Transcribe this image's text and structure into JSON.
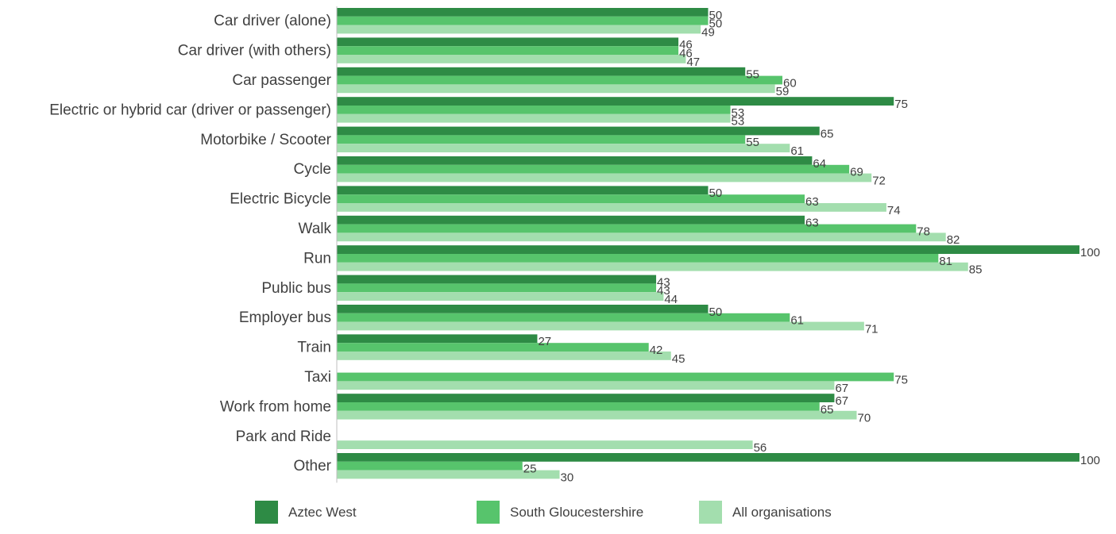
{
  "chart_data": {
    "type": "bar",
    "orientation": "horizontal",
    "categories": [
      "Car driver (alone)",
      "Car driver (with others)",
      "Car passenger",
      "Electric or hybrid car (driver or passenger)",
      "Motorbike / Scooter",
      "Cycle",
      "Electric Bicycle",
      "Walk",
      "Run",
      "Public bus",
      "Employer bus",
      "Train",
      "Taxi",
      "Work from home",
      "Park and Ride",
      "Other"
    ],
    "series": [
      {
        "name": "Aztec West",
        "color": "#2e8b45",
        "values": [
          50,
          46,
          55,
          75,
          65,
          64,
          50,
          63,
          100,
          43,
          50,
          27,
          null,
          67,
          null,
          100
        ]
      },
      {
        "name": "South Gloucestershire",
        "color": "#57c46c",
        "values": [
          50,
          46,
          60,
          53,
          55,
          69,
          63,
          78,
          81,
          43,
          61,
          42,
          75,
          65,
          null,
          25
        ]
      },
      {
        "name": "All organisations",
        "color": "#a3deae",
        "values": [
          49,
          47,
          59,
          53,
          61,
          72,
          74,
          82,
          85,
          44,
          71,
          45,
          67,
          70,
          56,
          30
        ]
      }
    ],
    "xlim": [
      0,
      100
    ],
    "grid": false,
    "legend_position": "bottom"
  }
}
